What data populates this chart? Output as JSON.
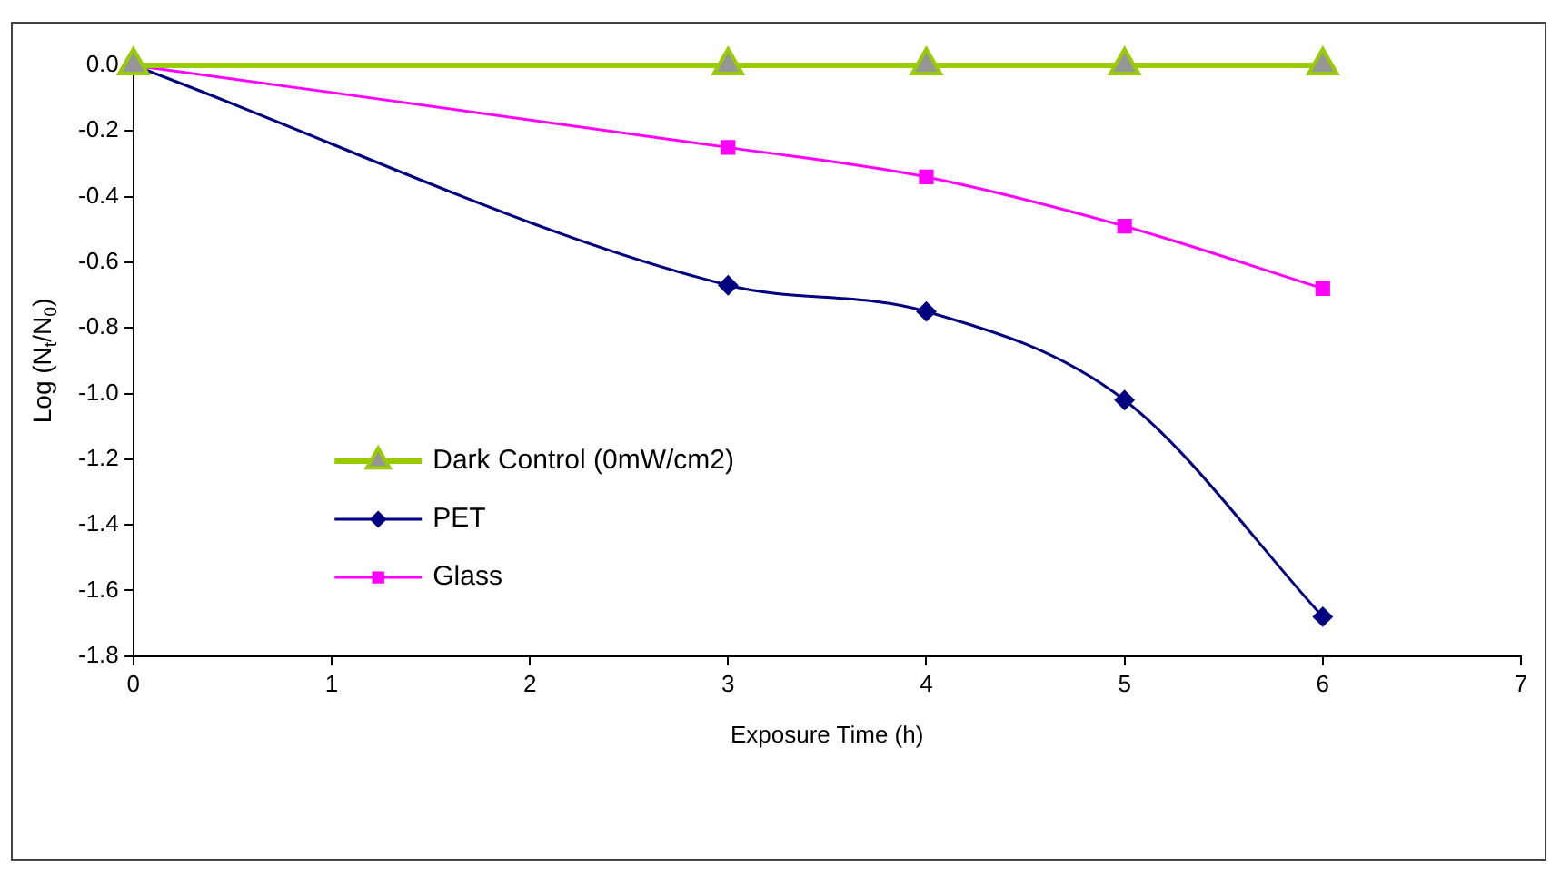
{
  "chart_data": {
    "type": "line",
    "xlabel": "Exposure Time (h)",
    "ylabel": "Log (N$_{t}$/N$_{0}$)",
    "x": [
      0,
      3,
      4,
      5,
      6
    ],
    "series": [
      {
        "name": "Dark Control (0mW/cm2)",
        "color": "#99cc00",
        "marker": "triangle",
        "values": [
          0,
          0,
          0,
          0,
          0
        ]
      },
      {
        "name": "PET",
        "color": "#000080",
        "marker": "diamond",
        "values": [
          0,
          -0.67,
          -0.75,
          -1.02,
          -1.68
        ]
      },
      {
        "name": "Glass",
        "color": "#ff00ff",
        "marker": "square",
        "values": [
          0,
          -0.25,
          -0.34,
          -0.49,
          -0.68
        ]
      }
    ],
    "xlim": [
      0,
      7
    ],
    "xticks": [
      0,
      1,
      2,
      3,
      4,
      5,
      6,
      7
    ],
    "ylim": [
      -1.8,
      0
    ],
    "yticks": [
      {
        "value": 0,
        "label": "0.0"
      },
      -0.2,
      -0.4,
      -0.6,
      -0.8,
      {
        "value": -1,
        "label": "-1.0"
      },
      -1.2,
      -1.4,
      -1.6,
      -1.8
    ],
    "grid": false,
    "legend": "bottom left",
    "line_style": "solid"
  }
}
